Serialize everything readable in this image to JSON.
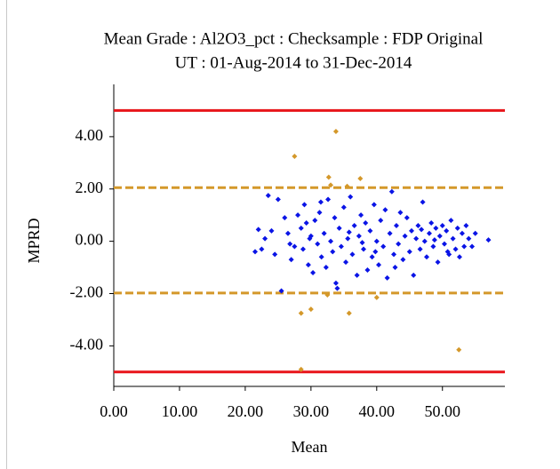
{
  "chart_data": {
    "type": "scatter",
    "title": "Mean Grade : Al2O3_pct : Checksample : FDP Original",
    "subtitle": "UT : 01-Aug-2014 to 31-Dec-2014",
    "x_label": "Mean",
    "y_label": "MPRD",
    "xlim": [
      0,
      59.5
    ],
    "ylim": [
      -5.55,
      6
    ],
    "xticks": [
      {
        "value": 0,
        "label": "0.00"
      },
      {
        "value": 10,
        "label": "10.00"
      },
      {
        "value": 20,
        "label": "20.00"
      },
      {
        "value": 30,
        "label": "30.00"
      },
      {
        "value": 40,
        "label": "40.00"
      },
      {
        "value": 50,
        "label": "50.00"
      }
    ],
    "yticks": [
      {
        "value": 4,
        "label": "4.00"
      },
      {
        "value": 2,
        "label": "2.00"
      },
      {
        "value": 0,
        "label": "0.00"
      },
      {
        "value": -2,
        "label": "-2.00"
      },
      {
        "value": -4,
        "label": "-4.00"
      }
    ],
    "reference_lines": [
      {
        "value": 5,
        "color": "#e8141a",
        "dashed": false
      },
      {
        "value": 2.05,
        "color": "#d4982a",
        "dashed": true
      },
      {
        "value": -1.98,
        "color": "#d4982a",
        "dashed": true
      },
      {
        "value": -5,
        "color": "#e8141a",
        "dashed": false
      }
    ],
    "series": [
      {
        "color": "#0a14e6",
        "x": [
          21.5,
          22,
          22.5,
          23,
          23.5,
          24,
          24.5,
          25,
          25.5,
          26,
          26.5,
          27,
          27.5,
          28,
          28.5,
          28.8,
          29,
          29.3,
          29.6,
          30,
          30.3,
          30.6,
          31,
          31.3,
          31.6,
          32,
          32.3,
          32.6,
          33,
          33.3,
          33.6,
          34,
          34.3,
          34.6,
          35,
          35.3,
          35.6,
          36,
          36.3,
          36.6,
          37,
          37.3,
          37.6,
          38,
          38.3,
          38.6,
          39,
          39.3,
          39.6,
          40,
          40.3,
          40.6,
          41,
          41.3,
          41.6,
          42,
          42.3,
          42.6,
          43,
          43.3,
          43.6,
          44,
          44.3,
          44.6,
          45,
          45.3,
          45.6,
          46,
          46.3,
          46.6,
          47,
          47.3,
          47.6,
          48,
          48.3,
          48.6,
          49,
          49.3,
          49.6,
          50,
          50.3,
          50.6,
          51,
          51.3,
          51.6,
          52,
          52.3,
          52.6,
          53,
          53.3,
          53.6,
          54,
          54.5,
          55,
          57,
          31.5,
          33.8,
          37.8,
          42.8,
          26.8,
          29.8,
          35.8,
          39.8,
          48.8,
          50.8,
          46.8
        ],
        "values": [
          -0.4,
          0.45,
          -0.3,
          0.1,
          1.75,
          0.4,
          -0.5,
          1.6,
          -1.9,
          0.9,
          0.3,
          -0.7,
          -0.2,
          1.0,
          0.5,
          -0.3,
          1.4,
          0.7,
          -0.9,
          0.2,
          -1.2,
          0.8,
          -0.1,
          1.1,
          -0.6,
          0.3,
          -1.0,
          1.6,
          0.0,
          -0.4,
          0.9,
          -1.8,
          0.5,
          -0.2,
          1.3,
          -0.8,
          0.1,
          1.7,
          -0.5,
          0.6,
          -1.3,
          0.2,
          1.0,
          -0.3,
          0.7,
          -1.1,
          0.4,
          -0.6,
          1.4,
          0.0,
          -0.9,
          0.8,
          -0.2,
          1.2,
          -1.4,
          0.3,
          1.9,
          -0.5,
          0.6,
          -0.1,
          1.1,
          -0.7,
          0.2,
          0.9,
          -0.4,
          0.4,
          -1.3,
          0.1,
          0.6,
          -0.3,
          1.5,
          0.0,
          -0.6,
          0.3,
          0.7,
          -0.2,
          0.5,
          -0.8,
          0.2,
          0.6,
          -0.1,
          0.4,
          -0.5,
          0.8,
          0.1,
          -0.3,
          0.5,
          -0.6,
          0.3,
          -0.2,
          0.6,
          0.1,
          -0.2,
          0.3,
          0.05,
          1.5,
          -1.6,
          -0.05,
          -1.0,
          -0.1,
          0.1,
          0.35,
          -0.4,
          0.05,
          -0.4,
          0.45
        ]
      },
      {
        "color": "#d4982a",
        "x": [
          27.5,
          33.8,
          32.7,
          33,
          35.5,
          37.5,
          28.5,
          30,
          32.5,
          35.8,
          40,
          28.5,
          52.5
        ],
        "values": [
          3.25,
          4.2,
          2.45,
          2.15,
          2.1,
          2.4,
          -2.75,
          -2.6,
          -2.05,
          -2.75,
          -2.15,
          -4.9,
          -4.15
        ]
      }
    ]
  }
}
